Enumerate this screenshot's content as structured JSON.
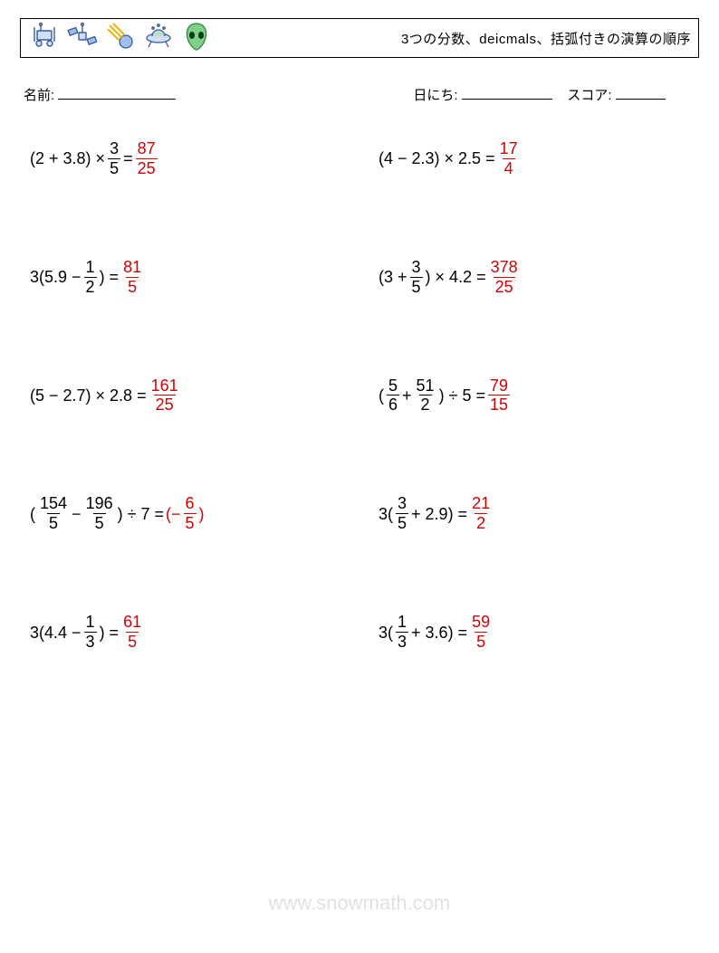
{
  "header": {
    "title": "3つの分数、deicmals、括弧付きの演算の順序"
  },
  "info": {
    "name_label": "名前:",
    "date_label": "日にち:",
    "score_label": "スコア:"
  },
  "answer_color": "#d40000",
  "problems": [
    {
      "parts": [
        {
          "t": "text",
          "v": "(2 + 3.8) × "
        },
        {
          "t": "frac",
          "n": "3",
          "d": "5"
        },
        {
          "t": "text",
          "v": " = "
        },
        {
          "t": "frac",
          "n": "87",
          "d": "25",
          "ans": true
        }
      ]
    },
    {
      "parts": [
        {
          "t": "text",
          "v": "(4 − 2.3) × 2.5 = "
        },
        {
          "t": "frac",
          "n": "17",
          "d": "4",
          "ans": true
        }
      ]
    },
    {
      "parts": [
        {
          "t": "text",
          "v": "3(5.9 − "
        },
        {
          "t": "frac",
          "n": "1",
          "d": "2"
        },
        {
          "t": "text",
          "v": ") = "
        },
        {
          "t": "frac",
          "n": "81",
          "d": "5",
          "ans": true
        }
      ]
    },
    {
      "parts": [
        {
          "t": "text",
          "v": "(3 + "
        },
        {
          "t": "frac",
          "n": "3",
          "d": "5"
        },
        {
          "t": "text",
          "v": ") × 4.2 = "
        },
        {
          "t": "frac",
          "n": "378",
          "d": "25",
          "ans": true
        }
      ]
    },
    {
      "parts": [
        {
          "t": "text",
          "v": "(5 − 2.7) × 2.8 = "
        },
        {
          "t": "frac",
          "n": "161",
          "d": "25",
          "ans": true
        }
      ]
    },
    {
      "parts": [
        {
          "t": "text",
          "v": "("
        },
        {
          "t": "frac",
          "n": "5",
          "d": "6"
        },
        {
          "t": "text",
          "v": " + "
        },
        {
          "t": "frac",
          "n": "51",
          "d": "2"
        },
        {
          "t": "text",
          "v": ") ÷ 5 = "
        },
        {
          "t": "frac",
          "n": "79",
          "d": "15",
          "ans": true
        }
      ]
    },
    {
      "parts": [
        {
          "t": "text",
          "v": "("
        },
        {
          "t": "frac",
          "n": "154",
          "d": "5"
        },
        {
          "t": "text",
          "v": " − "
        },
        {
          "t": "frac",
          "n": "196",
          "d": "5"
        },
        {
          "t": "text",
          "v": ") ÷ 7 = "
        },
        {
          "t": "text",
          "v": "(−",
          "ans": true
        },
        {
          "t": "frac",
          "n": "6",
          "d": "5",
          "ans": true
        },
        {
          "t": "text",
          "v": ")",
          "ans": true
        }
      ]
    },
    {
      "parts": [
        {
          "t": "text",
          "v": "3("
        },
        {
          "t": "frac",
          "n": "3",
          "d": "5"
        },
        {
          "t": "text",
          "v": " + 2.9) = "
        },
        {
          "t": "frac",
          "n": "21",
          "d": "2",
          "ans": true
        }
      ]
    },
    {
      "parts": [
        {
          "t": "text",
          "v": "3(4.4 − "
        },
        {
          "t": "frac",
          "n": "1",
          "d": "3"
        },
        {
          "t": "text",
          "v": ") = "
        },
        {
          "t": "frac",
          "n": "61",
          "d": "5",
          "ans": true
        }
      ]
    },
    {
      "parts": [
        {
          "t": "text",
          "v": "3("
        },
        {
          "t": "frac",
          "n": "1",
          "d": "3"
        },
        {
          "t": "text",
          "v": " + 3.6) = "
        },
        {
          "t": "frac",
          "n": "59",
          "d": "5",
          "ans": true
        }
      ]
    }
  ],
  "watermark": "www.snowmath.com"
}
